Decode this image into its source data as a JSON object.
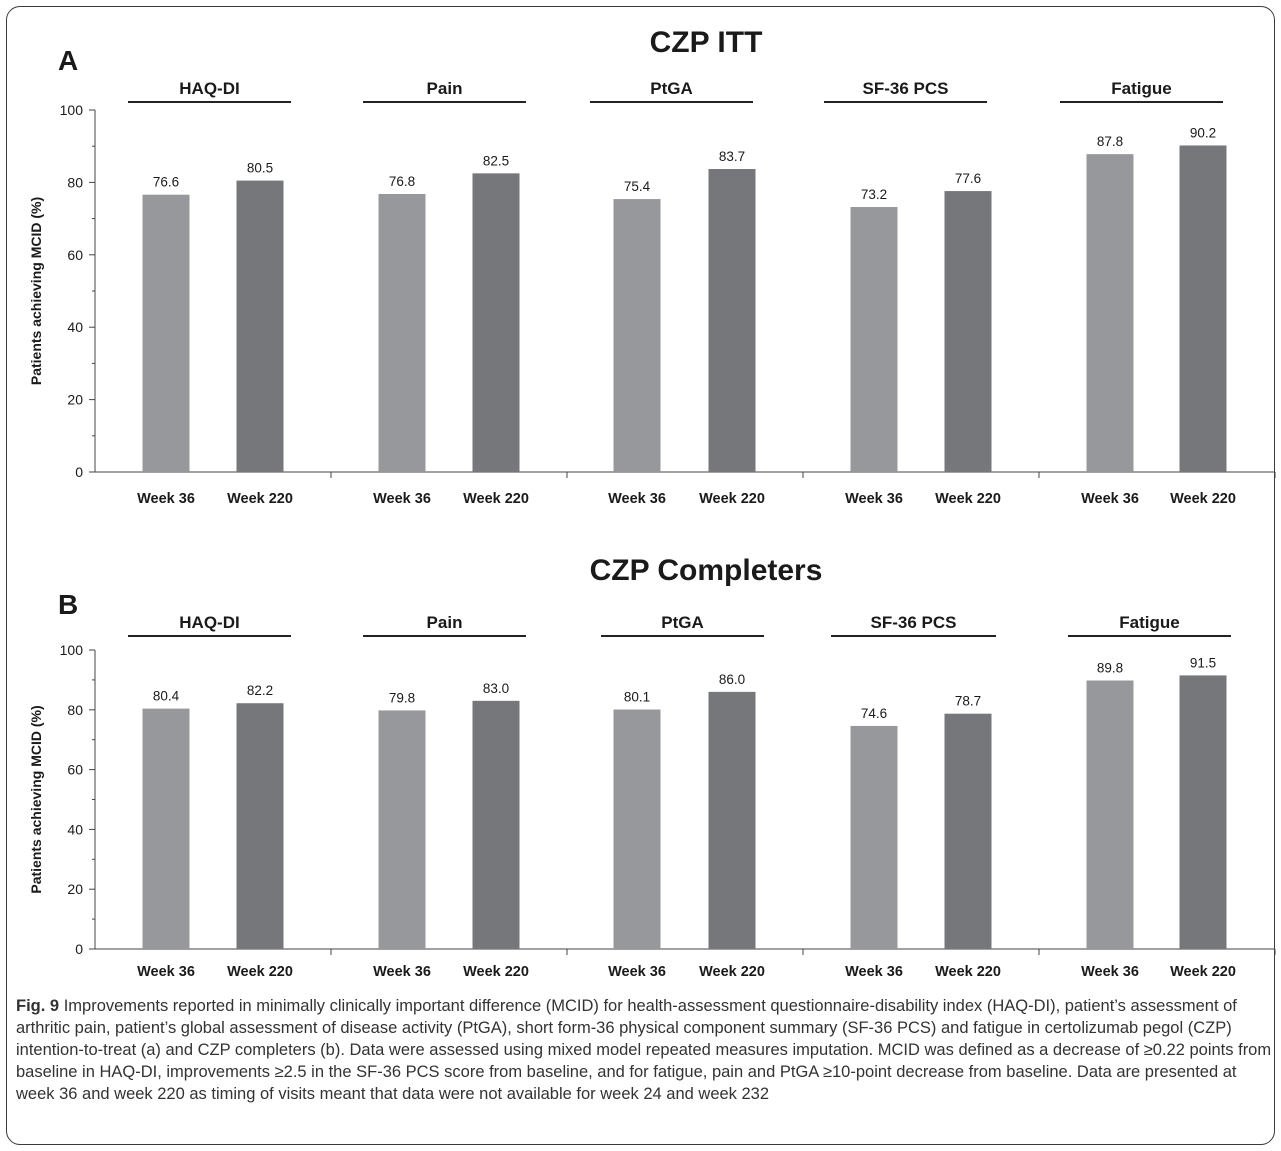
{
  "chart_data": [
    {
      "type": "bar",
      "panel_label": "A",
      "title": "CZP ITT",
      "ylabel": "Patients achieving MCID (%)",
      "ylim": [
        0,
        100
      ],
      "yticks": [
        0,
        20,
        40,
        60,
        80,
        100
      ],
      "groups": [
        {
          "name": "HAQ-DI",
          "categories": [
            "Week 36",
            "Week 220"
          ],
          "values": [
            76.6,
            80.5
          ]
        },
        {
          "name": "Pain",
          "categories": [
            "Week 36",
            "Week 220"
          ],
          "values": [
            76.8,
            82.5
          ]
        },
        {
          "name": "PtGA",
          "categories": [
            "Week 36",
            "Week 220"
          ],
          "values": [
            75.4,
            83.7
          ]
        },
        {
          "name": "SF-36 PCS",
          "categories": [
            "Week 36",
            "Week 220"
          ],
          "values": [
            73.2,
            77.6
          ]
        },
        {
          "name": "Fatigue",
          "categories": [
            "Week 36",
            "Week 220"
          ],
          "values": [
            87.8,
            90.2
          ]
        }
      ],
      "colors": {
        "week36": "#97989b",
        "week220": "#76777a"
      }
    },
    {
      "type": "bar",
      "panel_label": "B",
      "title": "CZP Completers",
      "ylabel": "Patients achieving MCID (%)",
      "ylim": [
        0,
        100
      ],
      "yticks": [
        0,
        20,
        40,
        60,
        80,
        100
      ],
      "groups": [
        {
          "name": "HAQ-DI",
          "categories": [
            "Week 36",
            "Week 220"
          ],
          "values": [
            80.4,
            82.2
          ]
        },
        {
          "name": "Pain",
          "categories": [
            "Week 36",
            "Week 220"
          ],
          "values": [
            79.8,
            83.0
          ]
        },
        {
          "name": "PtGA",
          "categories": [
            "Week 36",
            "Week 220"
          ],
          "values": [
            80.1,
            86.0
          ]
        },
        {
          "name": "SF-36 PCS",
          "categories": [
            "Week 36",
            "Week 220"
          ],
          "values": [
            74.6,
            78.7
          ]
        },
        {
          "name": "Fatigue",
          "categories": [
            "Week 36",
            "Week 220"
          ],
          "values": [
            89.8,
            91.5
          ]
        }
      ],
      "colors": {
        "week36": "#97989b",
        "week220": "#76777a"
      }
    }
  ],
  "caption": {
    "fig_label": "Fig. 9",
    "text": "Improvements reported in minimally clinically important difference (MCID) for health-assessment questionnaire-disability index (HAQ-DI), patient’s assessment of arthritic pain, patient’s global assessment of disease activity (PtGA), short form-36 physical component summary (SF-36 PCS) and fatigue in certolizumab pegol (CZP) intention-to-treat (a) and CZP completers (b). Data were assessed using mixed model repeated measures imputation. MCID was defined as a decrease of ≥0.22 points from baseline in HAQ-DI, improvements ≥2.5 in the SF-36 PCS score from baseline, and for fatigue, pain and PtGA ≥10-point decrease from baseline. Data are presented at week 36 and week 220 as timing of visits meant that data were not available for week 24 and week 232"
  }
}
